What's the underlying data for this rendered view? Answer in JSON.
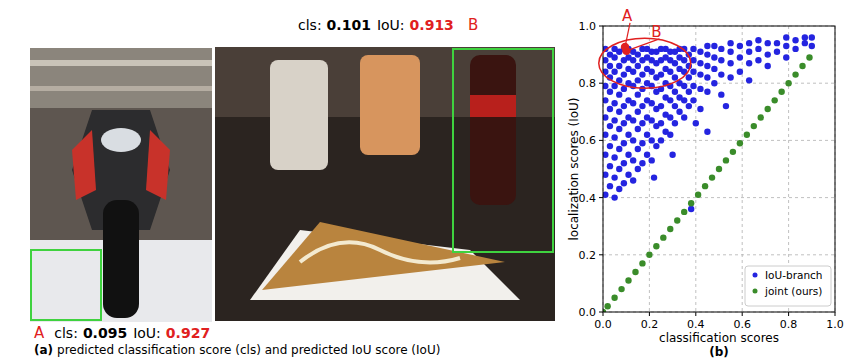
{
  "figure": {
    "cls_label": "cls:",
    "iou_label": "IoU:",
    "panels": [
      {
        "letter": "A",
        "cls": 0.095,
        "iou": 0.927
      },
      {
        "letter": "B",
        "cls": 0.101,
        "iou": 0.913
      }
    ],
    "caption_a_label": "(a)",
    "caption_a_text": "predicted classification score (cls) and predicted IoU score (IoU)",
    "caption_b": "(b)"
  },
  "chart_data": {
    "type": "scatter",
    "x_label": "classification scores",
    "y_label": "localization scores (IoU)",
    "xlim": [
      0,
      1
    ],
    "ylim": [
      0,
      1
    ],
    "xticks": [
      {
        "value": 0,
        "label": "0.0"
      },
      0.2,
      0.4,
      0.6,
      0.8,
      {
        "value": 1,
        "label": "1.0"
      }
    ],
    "yticks": [
      {
        "value": 0,
        "label": "0.0"
      },
      0.2,
      0.4,
      0.6,
      0.8,
      {
        "value": 1,
        "label": "1.0"
      }
    ],
    "grid": true,
    "legend": "lower right",
    "annotations": [
      {
        "text": "A",
        "x": 0.095,
        "y": 0.927
      },
      {
        "text": "B",
        "x": 0.101,
        "y": 0.913
      }
    ],
    "series": [
      {
        "name": "IoU-branch",
        "color": "#2424e0",
        "marker": "circle",
        "x": [
          0.01,
          0.01,
          0.01,
          0.01,
          0.01,
          0.01,
          0.01,
          0.01,
          0.01,
          0.01,
          0.03,
          0.03,
          0.03,
          0.03,
          0.03,
          0.03,
          0.03,
          0.03,
          0.03,
          0.05,
          0.05,
          0.05,
          0.05,
          0.05,
          0.05,
          0.05,
          0.05,
          0.05,
          0.05,
          0.07,
          0.07,
          0.07,
          0.07,
          0.07,
          0.07,
          0.07,
          0.07,
          0.07,
          0.09,
          0.09,
          0.09,
          0.09,
          0.09,
          0.09,
          0.09,
          0.09,
          0.09,
          0.11,
          0.11,
          0.11,
          0.11,
          0.11,
          0.11,
          0.11,
          0.11,
          0.11,
          0.13,
          0.13,
          0.13,
          0.13,
          0.13,
          0.13,
          0.13,
          0.13,
          0.13,
          0.15,
          0.15,
          0.15,
          0.15,
          0.15,
          0.15,
          0.15,
          0.15,
          0.17,
          0.17,
          0.17,
          0.17,
          0.17,
          0.17,
          0.17,
          0.17,
          0.19,
          0.19,
          0.19,
          0.19,
          0.19,
          0.19,
          0.19,
          0.19,
          0.21,
          0.21,
          0.21,
          0.21,
          0.21,
          0.21,
          0.21,
          0.21,
          0.23,
          0.23,
          0.23,
          0.23,
          0.23,
          0.23,
          0.23,
          0.25,
          0.25,
          0.25,
          0.25,
          0.25,
          0.25,
          0.25,
          0.27,
          0.27,
          0.27,
          0.27,
          0.27,
          0.27,
          0.27,
          0.29,
          0.29,
          0.29,
          0.29,
          0.29,
          0.29,
          0.29,
          0.31,
          0.31,
          0.31,
          0.31,
          0.31,
          0.31,
          0.33,
          0.33,
          0.33,
          0.33,
          0.33,
          0.33,
          0.35,
          0.35,
          0.35,
          0.35,
          0.35,
          0.35,
          0.37,
          0.37,
          0.37,
          0.37,
          0.37,
          0.39,
          0.39,
          0.39,
          0.39,
          0.39,
          0.42,
          0.42,
          0.42,
          0.42,
          0.42,
          0.45,
          0.45,
          0.45,
          0.45,
          0.45,
          0.48,
          0.48,
          0.48,
          0.48,
          0.51,
          0.51,
          0.51,
          0.51,
          0.55,
          0.55,
          0.55,
          0.55,
          0.59,
          0.59,
          0.59,
          0.63,
          0.63,
          0.63,
          0.63,
          0.67,
          0.67,
          0.67,
          0.71,
          0.71,
          0.71,
          0.75,
          0.75,
          0.79,
          0.79,
          0.79,
          0.83,
          0.83,
          0.87,
          0.87,
          0.9,
          0.9,
          0.38,
          0.22,
          0.3,
          0.45,
          0.4,
          0.53
        ],
        "values": [
          0.41,
          0.48,
          0.55,
          0.62,
          0.68,
          0.74,
          0.79,
          0.84,
          0.88,
          0.92,
          0.44,
          0.51,
          0.58,
          0.65,
          0.71,
          0.77,
          0.82,
          0.86,
          0.9,
          0.4,
          0.47,
          0.54,
          0.61,
          0.67,
          0.73,
          0.79,
          0.84,
          0.89,
          0.92,
          0.43,
          0.5,
          0.57,
          0.64,
          0.7,
          0.76,
          0.81,
          0.86,
          0.91,
          0.45,
          0.52,
          0.59,
          0.66,
          0.72,
          0.78,
          0.83,
          0.88,
          0.92,
          0.48,
          0.55,
          0.62,
          0.68,
          0.74,
          0.8,
          0.85,
          0.89,
          0.92,
          0.46,
          0.53,
          0.6,
          0.67,
          0.73,
          0.79,
          0.84,
          0.88,
          0.91,
          0.5,
          0.57,
          0.64,
          0.7,
          0.76,
          0.81,
          0.86,
          0.9,
          0.52,
          0.59,
          0.66,
          0.72,
          0.78,
          0.83,
          0.88,
          0.92,
          0.55,
          0.62,
          0.68,
          0.74,
          0.8,
          0.85,
          0.89,
          0.92,
          0.53,
          0.6,
          0.67,
          0.73,
          0.79,
          0.84,
          0.88,
          0.91,
          0.58,
          0.65,
          0.71,
          0.77,
          0.82,
          0.87,
          0.91,
          0.6,
          0.66,
          0.72,
          0.78,
          0.83,
          0.88,
          0.92,
          0.63,
          0.69,
          0.75,
          0.8,
          0.85,
          0.89,
          0.92,
          0.62,
          0.68,
          0.74,
          0.79,
          0.84,
          0.88,
          0.91,
          0.66,
          0.72,
          0.77,
          0.82,
          0.87,
          0.91,
          0.7,
          0.75,
          0.8,
          0.85,
          0.89,
          0.92,
          0.68,
          0.74,
          0.79,
          0.84,
          0.88,
          0.92,
          0.72,
          0.77,
          0.82,
          0.86,
          0.9,
          0.74,
          0.79,
          0.84,
          0.88,
          0.92,
          0.71,
          0.78,
          0.83,
          0.87,
          0.91,
          0.77,
          0.82,
          0.86,
          0.9,
          0.93,
          0.8,
          0.85,
          0.89,
          0.93,
          0.76,
          0.83,
          0.88,
          0.92,
          0.82,
          0.87,
          0.91,
          0.94,
          0.84,
          0.89,
          0.93,
          0.81,
          0.87,
          0.91,
          0.94,
          0.88,
          0.92,
          0.95,
          0.86,
          0.9,
          0.94,
          0.91,
          0.94,
          0.89,
          0.93,
          0.96,
          0.92,
          0.95,
          0.94,
          0.96,
          0.93,
          0.96,
          0.36,
          0.47,
          0.55,
          0.63,
          0.66,
          0.72
        ]
      },
      {
        "name": "joint (ours)",
        "color": "#3a8c2a",
        "marker": "circle",
        "x": [
          0,
          0.02,
          0.05,
          0.08,
          0.11,
          0.14,
          0.17,
          0.2,
          0.23,
          0.26,
          0.29,
          0.32,
          0.35,
          0.38,
          0.41,
          0.44,
          0.47,
          0.5,
          0.53,
          0.56,
          0.59,
          0.62,
          0.65,
          0.68,
          0.71,
          0.74,
          0.77,
          0.8,
          0.83,
          0.86,
          0.89
        ],
        "values": [
          0,
          0.02,
          0.05,
          0.08,
          0.11,
          0.14,
          0.17,
          0.2,
          0.23,
          0.26,
          0.29,
          0.32,
          0.35,
          0.38,
          0.41,
          0.44,
          0.47,
          0.5,
          0.53,
          0.56,
          0.59,
          0.62,
          0.65,
          0.68,
          0.71,
          0.74,
          0.77,
          0.8,
          0.83,
          0.86,
          0.89
        ]
      }
    ]
  }
}
